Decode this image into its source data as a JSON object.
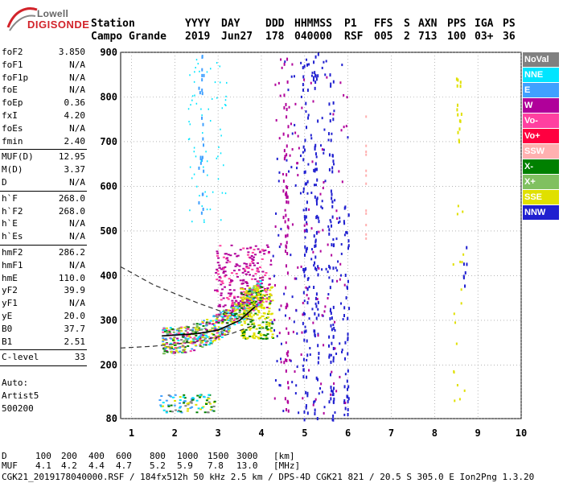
{
  "logo": {
    "top": "Lowell",
    "main": "DIGISONDE"
  },
  "header": {
    "row1": [
      "Station",
      "YYYY",
      "DAY",
      "DDD",
      "HHMMSS",
      "P1",
      "FFS",
      "S",
      "AXN",
      "PPS",
      "IGA",
      "PS"
    ],
    "row2": [
      "Campo Grande",
      "2019",
      "Jun27",
      "178",
      "040000",
      "RSF",
      "005",
      "2",
      "713",
      "100",
      "03+",
      "36"
    ]
  },
  "params": [
    {
      "group": [
        {
          "key": "foF2",
          "value": "3.850"
        },
        {
          "key": "foF1",
          "value": "N/A"
        },
        {
          "key": "foF1p",
          "value": "N/A"
        },
        {
          "key": "foE",
          "value": "N/A"
        },
        {
          "key": "foEp",
          "value": "0.36"
        },
        {
          "key": "fxI",
          "value": "4.20"
        },
        {
          "key": "foEs",
          "value": "N/A"
        },
        {
          "key": "fmin",
          "value": "2.40"
        }
      ]
    },
    {
      "group": [
        {
          "key": "MUF(D)",
          "value": "12.95"
        },
        {
          "key": "M(D)",
          "value": "3.37"
        },
        {
          "key": "D",
          "value": "N/A"
        }
      ]
    },
    {
      "group": [
        {
          "key": "h`F",
          "value": "268.0"
        },
        {
          "key": "h`F2",
          "value": "268.0"
        },
        {
          "key": "h`E",
          "value": "N/A"
        },
        {
          "key": "h`Es",
          "value": "N/A"
        }
      ]
    },
    {
      "group": [
        {
          "key": "hmF2",
          "value": "286.2"
        },
        {
          "key": "hmF1",
          "value": "N/A"
        },
        {
          "key": "hmE",
          "value": "110.0"
        },
        {
          "key": "yF2",
          "value": "39.9"
        },
        {
          "key": "yF1",
          "value": "N/A"
        },
        {
          "key": "yE",
          "value": "20.0"
        },
        {
          "key": "B0",
          "value": "37.7"
        },
        {
          "key": "B1",
          "value": "2.51"
        }
      ]
    },
    {
      "group": [
        {
          "key": "C-level",
          "value": "33"
        }
      ]
    }
  ],
  "auto": [
    "Auto:",
    "Artist5",
    "500200"
  ],
  "legend": [
    {
      "label": "NoVal",
      "color": "#808080"
    },
    {
      "label": "NNE",
      "color": "#00e5ff"
    },
    {
      "label": "E",
      "color": "#40a0ff"
    },
    {
      "label": "W",
      "color": "#b0009a"
    },
    {
      "label": "Vo-",
      "color": "#ff40a0"
    },
    {
      "label": "Vo+",
      "color": "#ff0040"
    },
    {
      "label": "SSW",
      "color": "#ffb0b0"
    },
    {
      "label": "X-",
      "color": "#008000"
    },
    {
      "label": "X+",
      "color": "#80c060"
    },
    {
      "label": "SSE",
      "color": "#e0e000"
    },
    {
      "label": "NNW",
      "color": "#2020d0"
    }
  ],
  "footer": {
    "d_label": "D",
    "d_values": [
      "100",
      "200",
      "400",
      "600",
      "800",
      "1000",
      "1500",
      "3000",
      "[km]"
    ],
    "muf_label": "MUF",
    "muf_values": [
      "4.1",
      "4.2",
      "4.4",
      "4.7",
      "5.2",
      "5.9",
      "7.8",
      "13.0",
      "[MHz]"
    ],
    "status": "CGK21_2019178040000.RSF / 184fx512h 50 kHz 2.5 km / DPS-4D CGK21 821 / 20.5 S 305.0 E Ion2Png 1.3.20"
  },
  "chart_data": {
    "type": "scatter",
    "x_ticks": [
      "1",
      "2",
      "3",
      "4",
      "5",
      "6",
      "7",
      "8",
      "9",
      "10"
    ],
    "y_ticks": [
      "80",
      "200",
      "300",
      "400",
      "500",
      "600",
      "700",
      "800",
      "900"
    ],
    "xlim": [
      0.75,
      10
    ],
    "ylim": [
      80,
      900
    ],
    "grid": true,
    "legend_position": "right",
    "profile_curve": {
      "x": [
        1.7,
        2.5,
        3.0,
        3.5,
        3.85
      ],
      "y": [
        265,
        270,
        278,
        300,
        330
      ]
    },
    "dashed_curve_upper": {
      "x": [
        0.75,
        1.5,
        2.5,
        3.3,
        3.85
      ],
      "y": [
        420,
        380,
        340,
        312,
        300
      ]
    },
    "dashed_curve_lower": {
      "x": [
        0.75,
        1.5,
        2.5,
        3.3,
        3.85
      ],
      "y": [
        238,
        242,
        252,
        270,
        290
      ]
    },
    "trace_series": [
      {
        "color": "#2020d0",
        "x": 5.0,
        "y_min": 80,
        "y_max": 900
      },
      {
        "color": "#2020d0",
        "x": 5.25,
        "y_min": 80,
        "y_max": 900
      },
      {
        "color": "#2020d0",
        "x": 5.6,
        "y_min": 80,
        "y_max": 900
      },
      {
        "color": "#b0009a",
        "x": 4.55,
        "y_min": 80,
        "y_max": 900
      },
      {
        "color": "#2020d0",
        "x": 5.95,
        "y_min": 90,
        "y_max": 560
      },
      {
        "color": "#e0e000",
        "x": 8.55,
        "y_min": 680,
        "y_max": 850
      },
      {
        "color": "#40a0ff",
        "x": 2.6,
        "y_min": 540,
        "y_max": 900
      },
      {
        "color": "#2020d0",
        "x": 8.7,
        "y_min": 380,
        "y_max": 470
      }
    ]
  }
}
